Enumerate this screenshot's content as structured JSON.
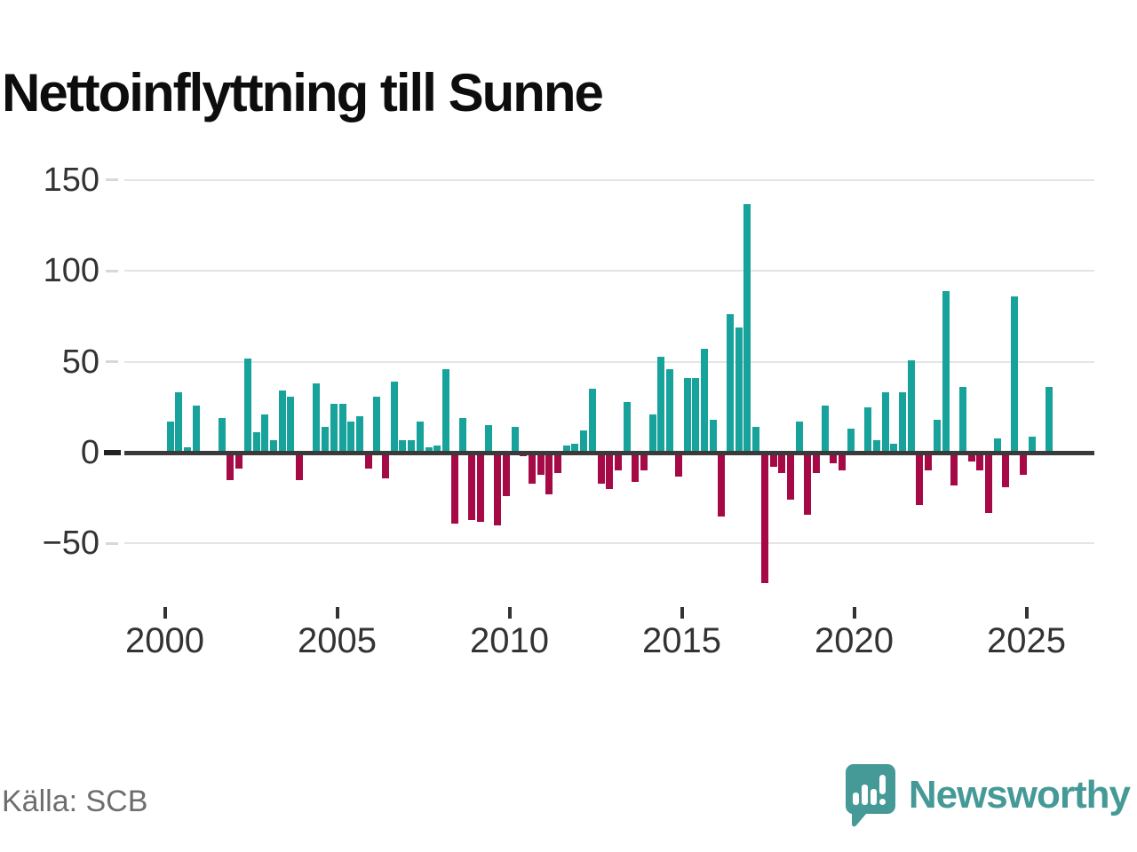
{
  "title": "Nettoinflyttning till Sunne",
  "source": "Källa: SCB",
  "branding": {
    "logo_text": "Newsworthy",
    "logo_icon": "bar-chart-speech-bubble-icon"
  },
  "colors": {
    "positive_bar": "#17a39b",
    "negative_bar": "#a50a46",
    "zero_axis": "#3a3a3a",
    "gridline": "#e4e4e4",
    "tick_label": "#333333",
    "title_text": "#0d0d0d",
    "source_text": "#6e6e6e",
    "brand_teal": "#459a97"
  },
  "chart_data": {
    "type": "bar",
    "title": "Nettoinflyttning till Sunne",
    "xlabel": "",
    "ylabel": "",
    "frequency": "quarterly",
    "start": "2000 Q1",
    "end": "2025 Q3",
    "ylim": [
      -85,
      150
    ],
    "y_ticks": [
      150,
      100,
      50,
      0,
      -50
    ],
    "y_tick_labels": [
      "150",
      "100",
      "50",
      "0",
      "−50"
    ],
    "x_tick_labels": [
      "2000",
      "2005",
      "2010",
      "2015",
      "2020",
      "2025"
    ],
    "grid": "horizontal",
    "legend": "none",
    "series": [
      {
        "year": 2000,
        "quarters": [
          17,
          33,
          3,
          26
        ]
      },
      {
        "year": 2001,
        "quarters": [
          0,
          0,
          19,
          -15
        ]
      },
      {
        "year": 2002,
        "quarters": [
          -9,
          52,
          11,
          21
        ]
      },
      {
        "year": 2003,
        "quarters": [
          7,
          34,
          31,
          -15
        ]
      },
      {
        "year": 2004,
        "quarters": [
          0,
          38,
          14,
          27
        ]
      },
      {
        "year": 2005,
        "quarters": [
          27,
          17,
          20,
          -9
        ]
      },
      {
        "year": 2006,
        "quarters": [
          31,
          -14,
          39,
          7
        ]
      },
      {
        "year": 2007,
        "quarters": [
          7,
          17,
          3,
          4
        ]
      },
      {
        "year": 2008,
        "quarters": [
          46,
          -39,
          19,
          -37
        ]
      },
      {
        "year": 2009,
        "quarters": [
          -38,
          15,
          -40,
          -24
        ]
      },
      {
        "year": 2010,
        "quarters": [
          14,
          -2,
          -17,
          -12
        ]
      },
      {
        "year": 2011,
        "quarters": [
          -23,
          -11,
          4,
          5
        ]
      },
      {
        "year": 2012,
        "quarters": [
          12,
          35,
          -17,
          -20
        ]
      },
      {
        "year": 2013,
        "quarters": [
          -10,
          28,
          -16,
          -10
        ]
      },
      {
        "year": 2014,
        "quarters": [
          21,
          53,
          46,
          -13
        ]
      },
      {
        "year": 2015,
        "quarters": [
          41,
          41,
          57,
          18
        ]
      },
      {
        "year": 2016,
        "quarters": [
          -35,
          76,
          69,
          137
        ]
      },
      {
        "year": 2017,
        "quarters": [
          14,
          -72,
          -8,
          -11
        ]
      },
      {
        "year": 2018,
        "quarters": [
          -26,
          17,
          -34,
          -11
        ]
      },
      {
        "year": 2019,
        "quarters": [
          26,
          -6,
          -10,
          13
        ]
      },
      {
        "year": 2020,
        "quarters": [
          0,
          25,
          7,
          33
        ]
      },
      {
        "year": 2021,
        "quarters": [
          5,
          33,
          51,
          -29
        ]
      },
      {
        "year": 2022,
        "quarters": [
          -10,
          18,
          89,
          -18
        ]
      },
      {
        "year": 2023,
        "quarters": [
          36,
          -5,
          -10,
          -33
        ]
      },
      {
        "year": 2024,
        "quarters": [
          8,
          -19,
          86,
          -12
        ]
      },
      {
        "year": 2025,
        "quarters": [
          9,
          0,
          36
        ]
      }
    ]
  }
}
